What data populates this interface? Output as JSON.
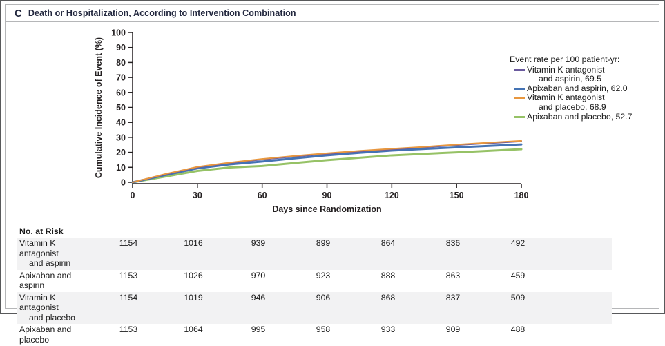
{
  "panel": {
    "label": "C",
    "title": "Death or Hospitalization, According to Intervention Combination"
  },
  "chart_data": {
    "type": "line",
    "title": "Death or Hospitalization, According to Intervention Combination",
    "xlabel": "Days since Randomization",
    "ylabel": "Cumulative Incidence of Event (%)",
    "xlim": [
      0,
      180
    ],
    "ylim": [
      0,
      100
    ],
    "xticks": [
      0,
      30,
      60,
      90,
      120,
      150,
      180
    ],
    "yticks": [
      0,
      10,
      20,
      30,
      40,
      50,
      60,
      70,
      80,
      90,
      100
    ],
    "grid": false,
    "legend_position": "right",
    "x": [
      0,
      15,
      30,
      45,
      60,
      75,
      90,
      105,
      120,
      135,
      150,
      165,
      180
    ],
    "series": [
      {
        "name": "Vitamin K antagonist and aspirin",
        "event_rate_per_100_patient_yr": 69.5,
        "color": "#6a5a9e",
        "line_width": 2,
        "values": [
          0,
          5.2,
          10.0,
          12.9,
          15.2,
          17.2,
          19.0,
          20.6,
          22.0,
          23.3,
          24.8,
          26.1,
          27.3
        ]
      },
      {
        "name": "Apixaban and aspirin",
        "event_rate_per_100_patient_yr": 62.0,
        "color": "#4473b4",
        "line_width": 3,
        "values": [
          0,
          4.8,
          9.3,
          12.0,
          13.9,
          16.0,
          18.0,
          19.7,
          21.2,
          22.3,
          23.3,
          24.3,
          25.3
        ]
      },
      {
        "name": "Vitamin K antagonist and placebo",
        "event_rate_per_100_patient_yr": 68.9,
        "color": "#e8973f",
        "line_width": 2,
        "values": [
          0,
          5.5,
          10.3,
          13.2,
          15.6,
          17.6,
          19.4,
          21.0,
          22.4,
          23.7,
          25.2,
          26.5,
          27.7
        ]
      },
      {
        "name": "Apixaban and placebo",
        "event_rate_per_100_patient_yr": 52.7,
        "color": "#96c266",
        "line_width": 3,
        "values": [
          0,
          3.8,
          7.6,
          9.9,
          10.9,
          12.9,
          14.8,
          16.4,
          18.0,
          19.0,
          20.0,
          21.0,
          22.1
        ]
      }
    ],
    "draw_order": [
      3,
      1,
      0,
      2
    ]
  },
  "legend": {
    "header": "Event rate per 100 patient-yr:",
    "items": [
      {
        "lines": [
          "Vitamin K antagonist",
          "and aspirin, 69.5"
        ],
        "color": "#6a5a9e"
      },
      {
        "lines": [
          "Apixaban and aspirin, 62.0"
        ],
        "color": "#4473b4"
      },
      {
        "lines": [
          "Vitamin K antagonist",
          "and placebo, 68.9"
        ],
        "color": "#e8973f"
      },
      {
        "lines": [
          "Apixaban and placebo, 52.7"
        ],
        "color": "#96c266"
      }
    ]
  },
  "risk_table": {
    "header": "No. at Risk",
    "rows": [
      {
        "label_lines": [
          "Vitamin K antagonist",
          "and aspirin"
        ],
        "shaded": true,
        "counts": [
          "1154",
          "1016",
          "939",
          "899",
          "864",
          "836",
          "492"
        ]
      },
      {
        "label_lines": [
          "Apixaban and aspirin"
        ],
        "shaded": false,
        "counts": [
          "1153",
          "1026",
          "970",
          "923",
          "888",
          "863",
          "459"
        ]
      },
      {
        "label_lines": [
          "Vitamin K antagonist",
          "and placebo"
        ],
        "shaded": true,
        "counts": [
          "1154",
          "1019",
          "946",
          "906",
          "868",
          "837",
          "509"
        ]
      },
      {
        "label_lines": [
          "Apixaban and placebo"
        ],
        "shaded": false,
        "counts": [
          "1153",
          "1064",
          "995",
          "958",
          "933",
          "909",
          "488"
        ]
      }
    ]
  },
  "colors": {
    "axis": "#231f20",
    "title_text": "#23283f",
    "row_shading": "#f2f2f3",
    "outer_border": "#58595b",
    "inner_border": "#b5b6b8"
  }
}
